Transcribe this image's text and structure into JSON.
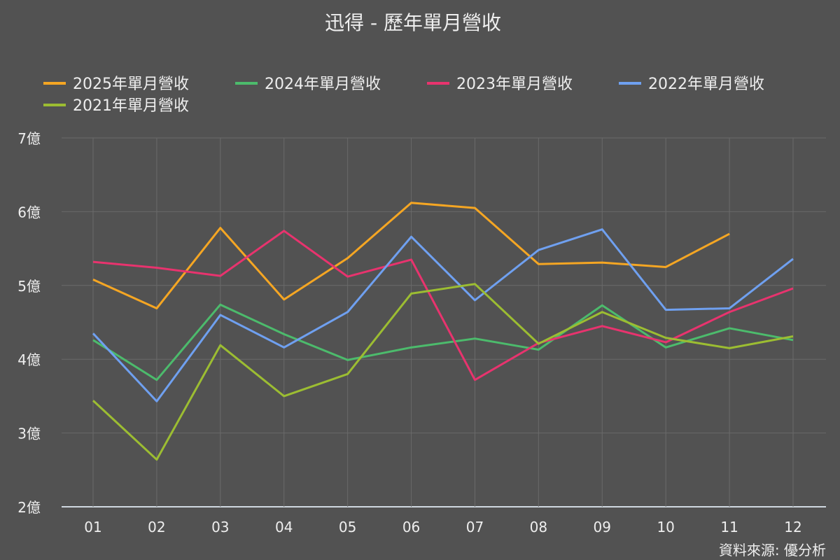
{
  "chart_data": {
    "type": "line",
    "title": "迅得 - 歷年單月營收",
    "source": "資料來源: 優分析",
    "categories": [
      "01",
      "02",
      "03",
      "04",
      "05",
      "06",
      "07",
      "08",
      "09",
      "10",
      "11",
      "12"
    ],
    "ylim": [
      2,
      7
    ],
    "yticks": [
      2,
      3,
      4,
      5,
      6,
      7
    ],
    "ytick_labels": [
      "2億",
      "3億",
      "4億",
      "5億",
      "6億",
      "7億"
    ],
    "grid": true,
    "legend_position": "top",
    "series": [
      {
        "name": "2025年單月營收",
        "color": "#f5a623",
        "values": [
          5.08,
          4.69,
          5.78,
          4.81,
          5.37,
          6.12,
          6.05,
          5.29,
          5.31,
          5.25,
          5.7,
          null
        ]
      },
      {
        "name": "2024年單月營收",
        "color": "#4cbb6c",
        "values": [
          4.26,
          3.72,
          4.74,
          4.34,
          3.99,
          4.16,
          4.28,
          4.13,
          4.73,
          4.16,
          4.42,
          4.26
        ]
      },
      {
        "name": "2023年單月營收",
        "color": "#e8336e",
        "values": [
          5.32,
          5.24,
          5.13,
          5.74,
          5.12,
          5.35,
          3.72,
          4.22,
          4.45,
          4.23,
          4.64,
          4.96
        ]
      },
      {
        "name": "2022年單月營收",
        "color": "#6fa0f0",
        "values": [
          4.35,
          3.43,
          4.6,
          4.16,
          4.64,
          5.66,
          4.8,
          5.48,
          5.76,
          4.67,
          4.69,
          5.36
        ]
      },
      {
        "name": "2021年單月營收",
        "color": "#9cbd32",
        "values": [
          3.44,
          2.64,
          4.19,
          3.5,
          3.8,
          4.89,
          5.02,
          4.21,
          4.64,
          4.29,
          4.15,
          4.31
        ]
      }
    ]
  }
}
